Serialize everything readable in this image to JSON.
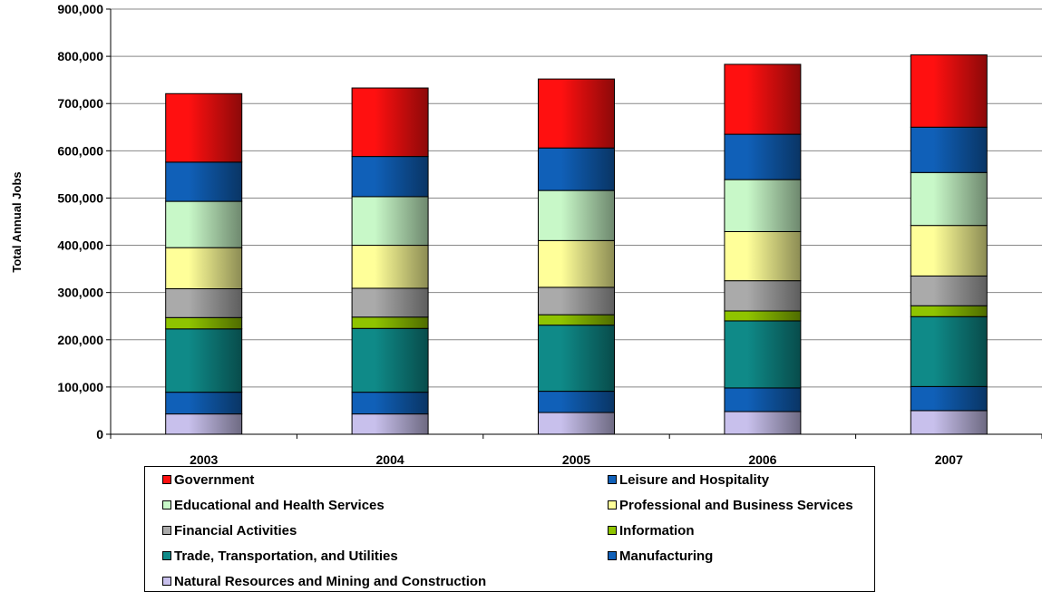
{
  "chart_data": {
    "type": "bar",
    "stacked": true,
    "categories": [
      "2003",
      "2004",
      "2005",
      "2006",
      "2007"
    ],
    "ylabel": "Total Annual Jobs",
    "xlabel": "",
    "ylim": [
      0,
      900000
    ],
    "yticks": [
      0,
      100000,
      200000,
      300000,
      400000,
      500000,
      600000,
      700000,
      800000,
      900000
    ],
    "ytick_labels": [
      "0",
      "100,000",
      "200,000",
      "300,000",
      "400,000",
      "500,000",
      "600,000",
      "700,000",
      "800,000",
      "900,000"
    ],
    "grid": "horizontal",
    "legend_position": "bottom",
    "series": [
      {
        "name": "Natural Resources and Mining and Construction",
        "color": "#c8c0ec",
        "values": [
          43000,
          43000,
          46000,
          48000,
          50000
        ]
      },
      {
        "name": "Manufacturing",
        "color": "#1060b8",
        "values": [
          46000,
          46000,
          45000,
          50000,
          51000
        ]
      },
      {
        "name": "Trade, Transportation, and Utilities",
        "color": "#0f8a88",
        "values": [
          134000,
          135000,
          140000,
          142000,
          148000
        ]
      },
      {
        "name": "Information",
        "color": "#8fc400",
        "values": [
          24000,
          24000,
          22000,
          21000,
          23000
        ]
      },
      {
        "name": "Financial Activities",
        "color": "#aaaaaa",
        "values": [
          61000,
          61000,
          58000,
          64000,
          63000
        ]
      },
      {
        "name": "Professional and Business Services",
        "color": "#ffff99",
        "values": [
          87000,
          91000,
          99000,
          104000,
          107000
        ]
      },
      {
        "name": "Educational and Health Services",
        "color": "#c8f8c8",
        "values": [
          98000,
          103000,
          106000,
          110000,
          112000
        ]
      },
      {
        "name": "Leisure and Hospitality",
        "color": "#1060b8",
        "values": [
          83000,
          85000,
          90000,
          96000,
          96000
        ]
      },
      {
        "name": "Government",
        "color": "#ff1010",
        "values": [
          145000,
          145000,
          146000,
          148000,
          153000
        ]
      }
    ],
    "legend_order": [
      "Government",
      "Leisure and Hospitality",
      "Educational and Health Services",
      "Professional and Business Services",
      "Financial Activities",
      "Information",
      "Trade, Transportation, and Utilities",
      "Manufacturing",
      "Natural Resources and Mining and Construction"
    ]
  }
}
